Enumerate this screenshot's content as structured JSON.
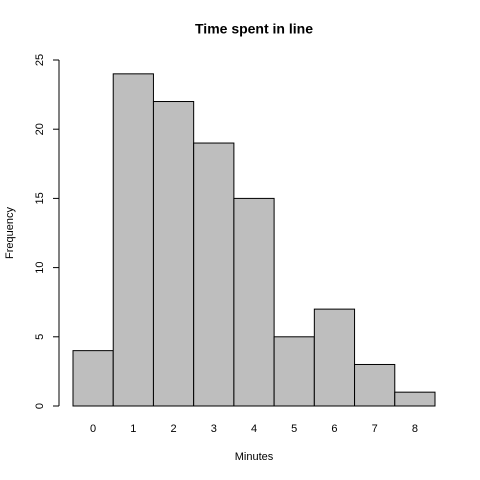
{
  "chart_data": {
    "type": "bar",
    "title": "Time spent in line",
    "x_label": "Minutes",
    "y_label": "Frequency",
    "categories": [
      "0",
      "1",
      "2",
      "3",
      "4",
      "5",
      "6",
      "7",
      "8"
    ],
    "values": [
      4,
      24,
      22,
      19,
      15,
      5,
      7,
      3,
      1
    ],
    "color": "#bebebe",
    "ylim": [
      0,
      25
    ],
    "yticks": [
      0,
      5,
      10,
      15,
      20,
      25
    ]
  }
}
